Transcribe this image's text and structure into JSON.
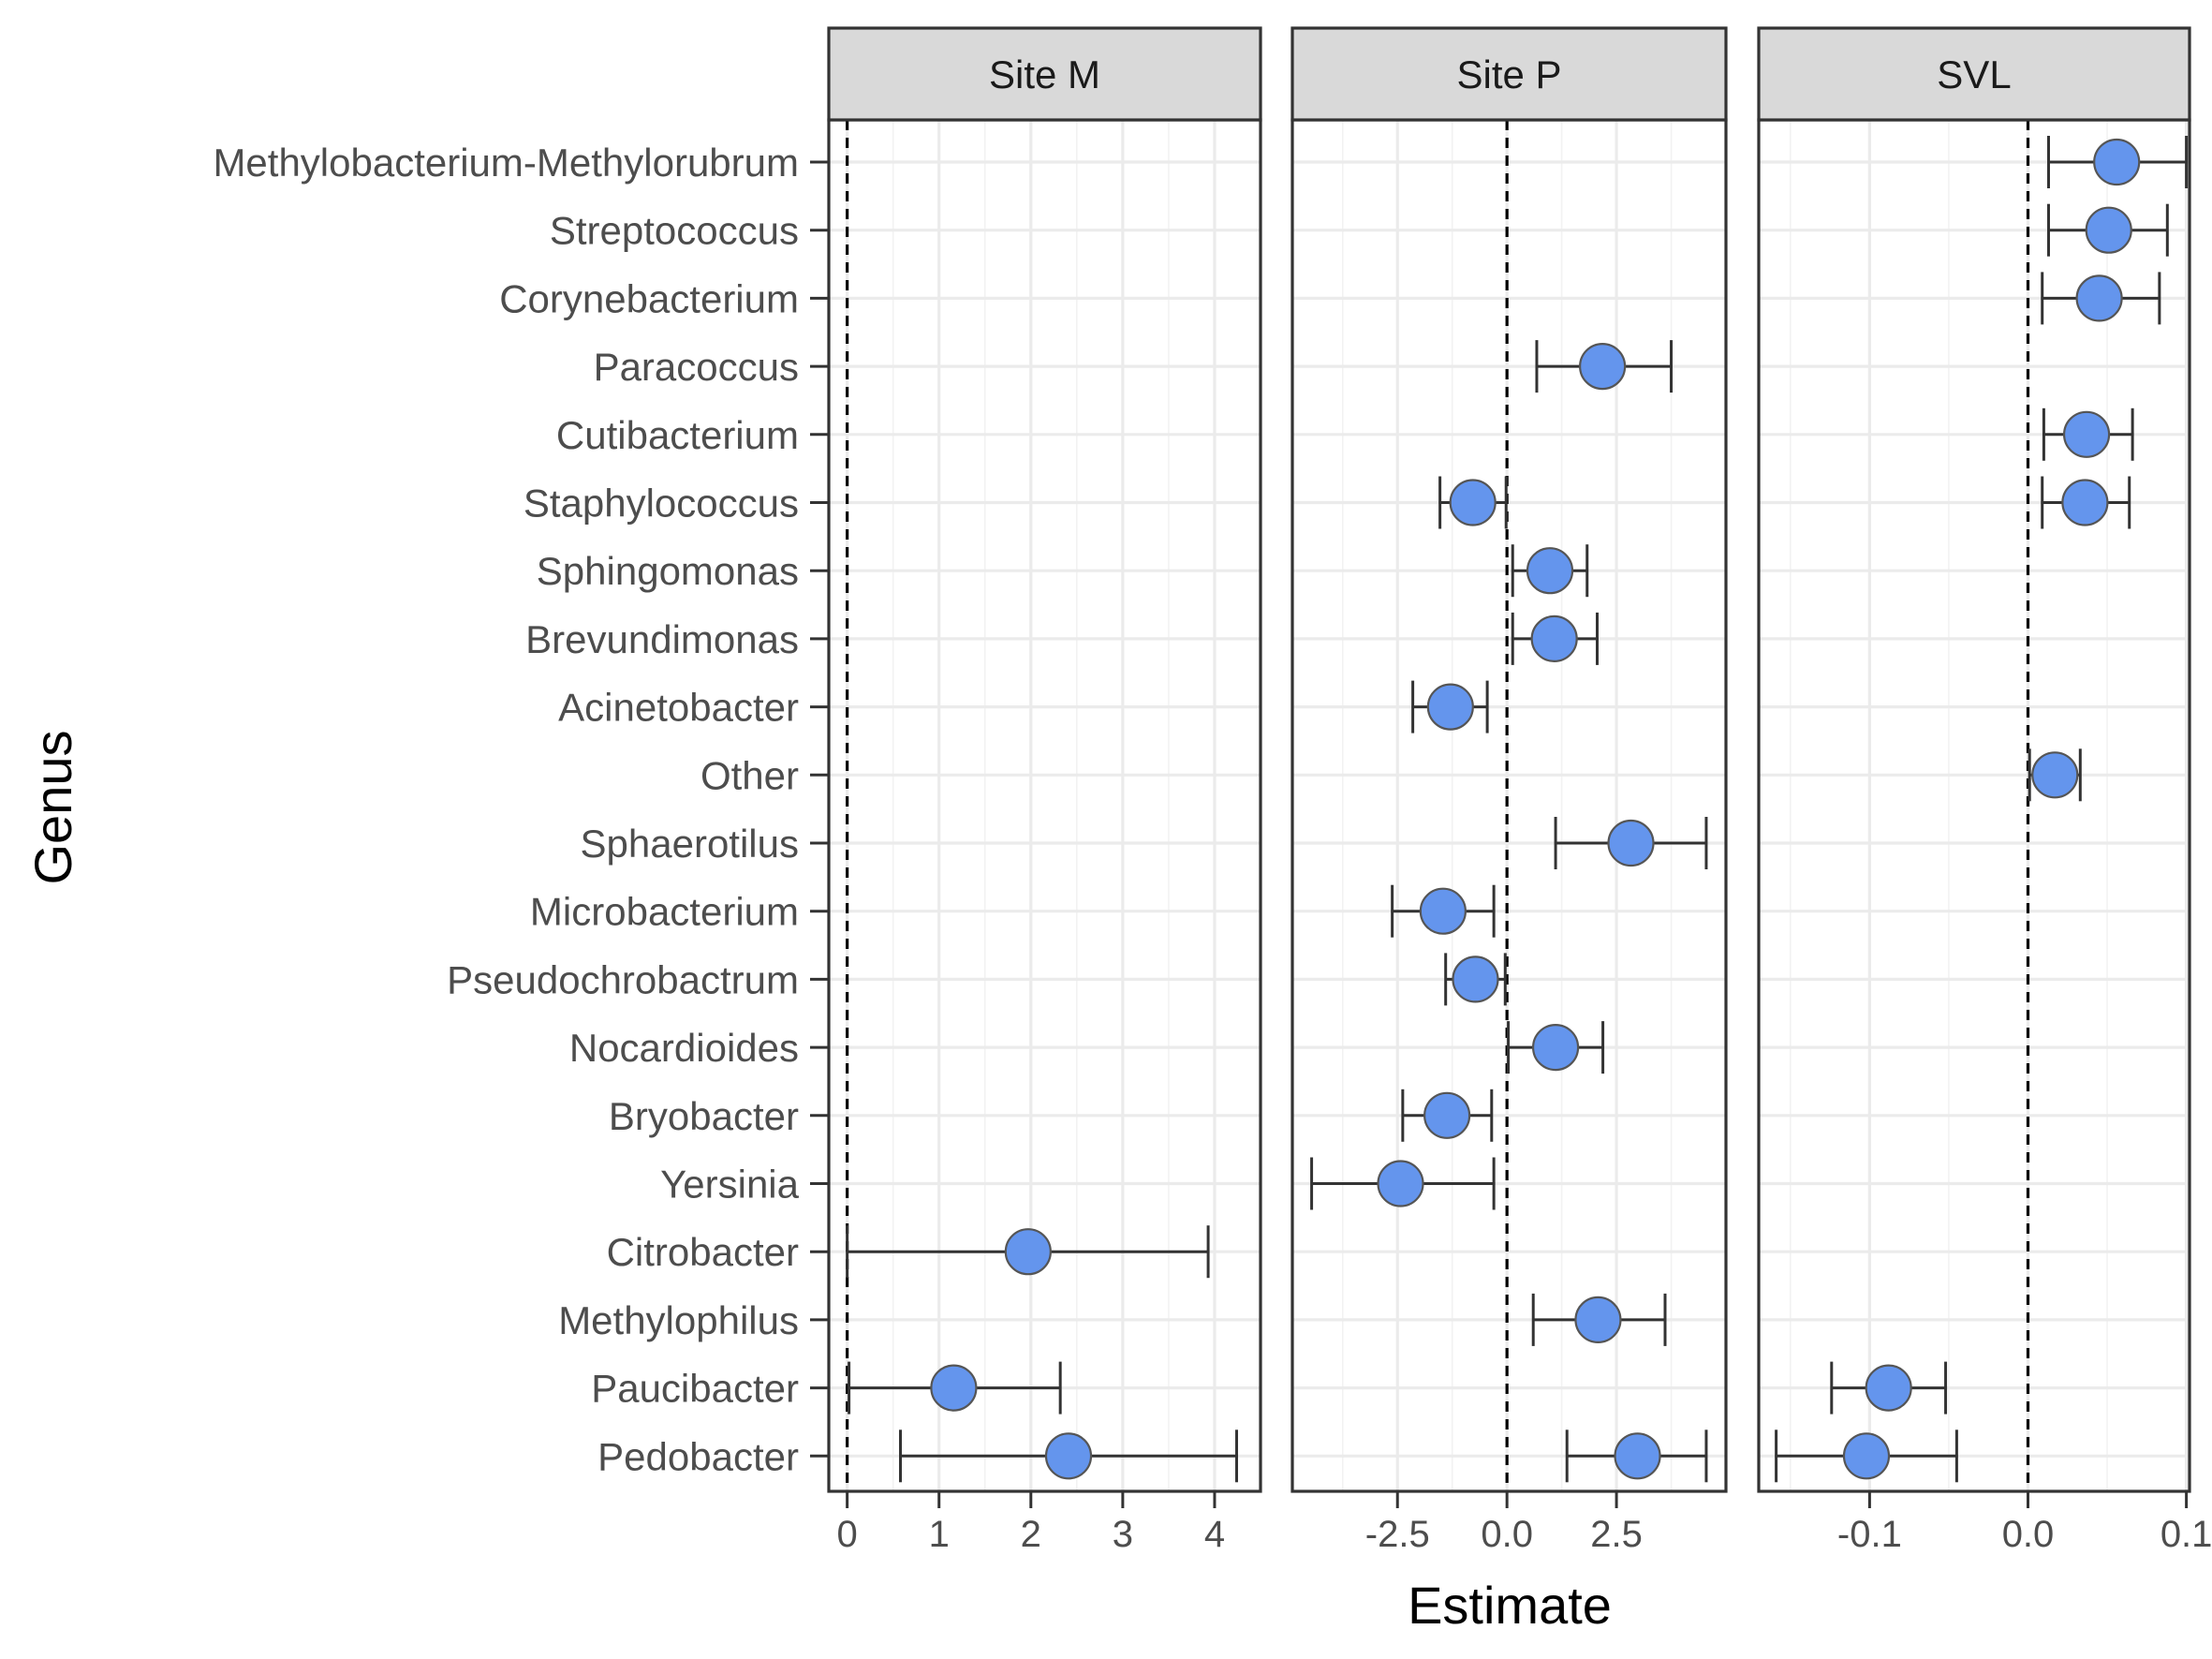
{
  "chart_data": {
    "type": "scatter",
    "xlabel": "Estimate",
    "ylabel": "Genus",
    "grid": true,
    "reference_line": 0,
    "point_color": "#6495ED",
    "genera": [
      "Methylobacterium-Methylorubrum",
      "Streptococcus",
      "Corynebacterium",
      "Paracoccus",
      "Cutibacterium",
      "Staphylococcus",
      "Sphingomonas",
      "Brevundimonas",
      "Acinetobacter",
      "Other",
      "Sphaerotilus",
      "Microbacterium",
      "Pseudochrobactrum",
      "Nocardioides",
      "Bryobacter",
      "Yersinia",
      "Citrobacter",
      "Methylophilus",
      "Paucibacter",
      "Pedobacter"
    ],
    "panels": [
      {
        "name": "Site M",
        "xlim": [
          -0.2,
          4.5
        ],
        "ticks": [
          0,
          1,
          2,
          3,
          4
        ],
        "tick_labels": [
          "0",
          "1",
          "2",
          "3",
          "4"
        ],
        "points": [
          {
            "genus": "Citrobacter",
            "estimate": 1.97,
            "low": 0.0,
            "high": 3.93
          },
          {
            "genus": "Paucibacter",
            "estimate": 1.16,
            "low": 0.02,
            "high": 2.32
          },
          {
            "genus": "Pedobacter",
            "estimate": 2.41,
            "low": 0.58,
            "high": 4.24
          }
        ]
      },
      {
        "name": "Site P",
        "xlim": [
          -4.9,
          5.0
        ],
        "ticks": [
          -2.5,
          0.0,
          2.5
        ],
        "tick_labels": [
          "-2.5",
          "0.0",
          "2.5"
        ],
        "points": [
          {
            "genus": "Paracoccus",
            "estimate": 2.18,
            "low": 0.68,
            "high": 3.75
          },
          {
            "genus": "Staphylococcus",
            "estimate": -0.78,
            "low": -1.53,
            "high": -0.02
          },
          {
            "genus": "Sphingomonas",
            "estimate": 0.98,
            "low": 0.13,
            "high": 1.83
          },
          {
            "genus": "Brevundimonas",
            "estimate": 1.08,
            "low": 0.13,
            "high": 2.06
          },
          {
            "genus": "Acinetobacter",
            "estimate": -1.29,
            "low": -2.15,
            "high": -0.45
          },
          {
            "genus": "Sphaerotilus",
            "estimate": 2.83,
            "low": 1.11,
            "high": 4.55
          },
          {
            "genus": "Microbacterium",
            "estimate": -1.46,
            "low": -2.62,
            "high": -0.3
          },
          {
            "genus": "Pseudochrobactrum",
            "estimate": -0.72,
            "low": -1.4,
            "high": -0.04
          },
          {
            "genus": "Nocardioides",
            "estimate": 1.11,
            "low": 0.03,
            "high": 2.19
          },
          {
            "genus": "Bryobacter",
            "estimate": -1.37,
            "low": -2.38,
            "high": -0.35
          },
          {
            "genus": "Yersinia",
            "estimate": -2.43,
            "low": -4.46,
            "high": -0.3
          },
          {
            "genus": "Methylophilus",
            "estimate": 2.08,
            "low": 0.6,
            "high": 3.61
          },
          {
            "genus": "Pedobacter",
            "estimate": 2.98,
            "low": 1.37,
            "high": 4.55
          }
        ]
      },
      {
        "name": "SVL",
        "xlim": [
          -0.17,
          0.102
        ],
        "ticks": [
          -0.1,
          0.0,
          0.1
        ],
        "tick_labels": [
          "-0.1",
          "0.0",
          "0.1"
        ],
        "points": [
          {
            "genus": "Methylobacterium-Methylorubrum",
            "estimate": 0.056,
            "low": 0.013,
            "high": 0.1
          },
          {
            "genus": "Streptococcus",
            "estimate": 0.051,
            "low": 0.013,
            "high": 0.088
          },
          {
            "genus": "Corynebacterium",
            "estimate": 0.045,
            "low": 0.009,
            "high": 0.083
          },
          {
            "genus": "Cutibacterium",
            "estimate": 0.037,
            "low": 0.01,
            "high": 0.066
          },
          {
            "genus": "Staphylococcus",
            "estimate": 0.036,
            "low": 0.009,
            "high": 0.064
          },
          {
            "genus": "Other",
            "estimate": 0.017,
            "low": 0.001,
            "high": 0.033
          },
          {
            "genus": "Paucibacter",
            "estimate": -0.088,
            "low": -0.124,
            "high": -0.052
          },
          {
            "genus": "Pedobacter",
            "estimate": -0.102,
            "low": -0.159,
            "high": -0.045
          }
        ]
      }
    ]
  }
}
